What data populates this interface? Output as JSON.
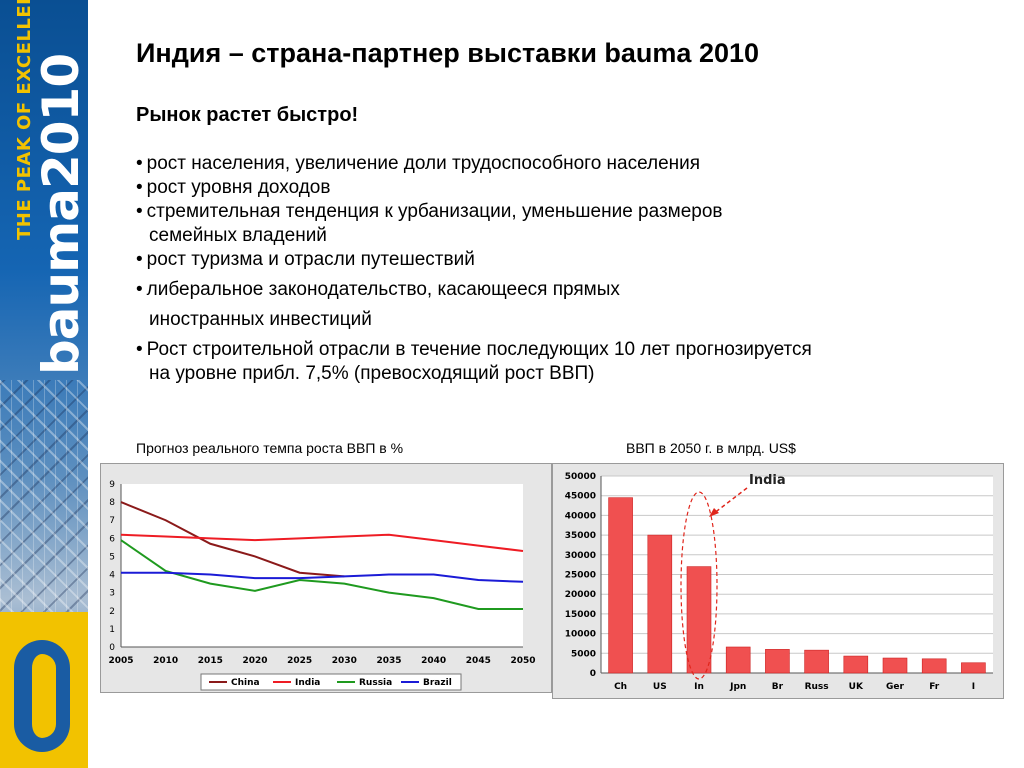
{
  "banner": {
    "slogan": "THE PEAK OF EXCELLENCE",
    "brand": "bauma2010"
  },
  "slide": {
    "title": "Индия – страна-партнер выставки bauma 2010",
    "subtitle": "Рынок растет быстро!",
    "bullets": [
      {
        "line1": "рост населения, увеличение доли трудоспособного населения",
        "line2": ""
      },
      {
        "line1": "рост уровня доходов",
        "line2": ""
      },
      {
        "line1": "стремительная тенденция к урбанизации, уменьшение  размеров",
        "line2": "семейных владений"
      },
      {
        "line1": "рост туризма и отрасли путешествий",
        "line2": ""
      },
      {
        "line1": "либеральное законодательство, касающееся прямых",
        "line2": "иностранных инвестиций"
      },
      {
        "line1": "Рост строительной отрасли в течение последующих 10 лет прогнозируется",
        "line2": "на уровне прибл. 7,5% (превосходящий рост ВВП)"
      }
    ],
    "caption_left": "Прогноз реального темпа роста ВВП в %",
    "caption_right": "ВВП в 2050 г. в млрд. US$"
  },
  "chart_data": [
    {
      "type": "line",
      "x": [
        "2005",
        "2010",
        "2015",
        "2020",
        "2025",
        "2030",
        "2035",
        "2040",
        "2045",
        "2050"
      ],
      "ylim": [
        0,
        9
      ],
      "yticks": [
        0,
        1,
        2,
        3,
        4,
        5,
        6,
        7,
        8,
        9
      ],
      "grid": false,
      "legend": "bottom",
      "series": [
        {
          "name": "China",
          "color": "#8b1a1a",
          "values": [
            8.0,
            7.0,
            5.7,
            5.0,
            4.1,
            3.9,
            null,
            null,
            null,
            null
          ]
        },
        {
          "name": "India",
          "color": "#ee1c24",
          "values": [
            6.2,
            6.1,
            6.0,
            5.9,
            6.0,
            6.1,
            6.2,
            5.9,
            5.6,
            5.3
          ]
        },
        {
          "name": "Russia",
          "color": "#1f9a1f",
          "values": [
            5.9,
            4.2,
            3.5,
            3.1,
            3.7,
            3.5,
            3.0,
            2.7,
            2.1,
            2.1
          ]
        },
        {
          "name": "Brazil",
          "color": "#1b1bd6",
          "values": [
            4.1,
            4.1,
            4.0,
            3.8,
            3.8,
            3.9,
            4.0,
            4.0,
            3.7,
            3.6
          ]
        }
      ]
    },
    {
      "type": "bar",
      "categories": [
        "Ch",
        "US",
        "In",
        "Jpn",
        "Br",
        "Russ",
        "UK",
        "Ger",
        "Fr",
        "I"
      ],
      "values": [
        44500,
        35000,
        27000,
        6600,
        6000,
        5800,
        4300,
        3800,
        3600,
        2600
      ],
      "ylim": [
        0,
        50000
      ],
      "yticks": [
        0,
        5000,
        10000,
        15000,
        20000,
        25000,
        30000,
        35000,
        40000,
        45000,
        50000
      ],
      "annotation": "India",
      "bar_color": "#f05050",
      "accent_color": "#e0251b"
    }
  ]
}
